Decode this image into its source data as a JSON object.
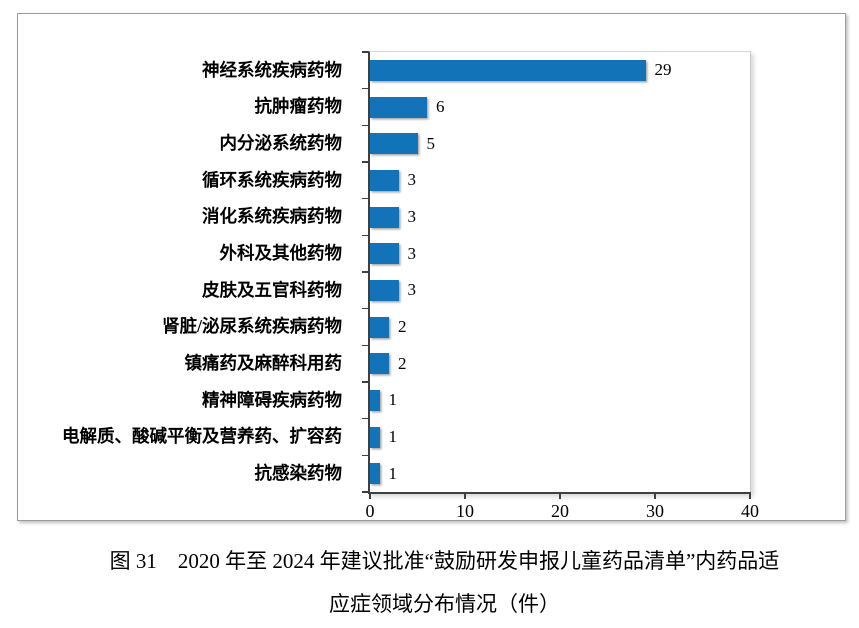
{
  "chart_data": {
    "type": "bar",
    "orientation": "horizontal",
    "title": "",
    "xlabel": "",
    "ylabel": "",
    "categories": [
      "神经系统疾病药物",
      "抗肿瘤药物",
      "内分泌系统药物",
      "循环系统疾病药物",
      "消化系统疾病药物",
      "外科及其他药物",
      "皮肤及五官科药物",
      "肾脏/泌尿系统疾病药物",
      "镇痛药及麻醉科用药",
      "精神障碍疾病药物",
      "电解质、酸碱平衡及营养药、扩容药",
      "抗感染药物"
    ],
    "values": [
      29,
      6,
      5,
      3,
      3,
      3,
      3,
      2,
      2,
      1,
      1,
      1
    ],
    "xlim": [
      0,
      40
    ],
    "x_ticks": [
      0,
      10,
      20,
      30,
      40
    ],
    "grid": false,
    "legend": "none",
    "value_labels_shown": true,
    "bar_color": "#1273B8",
    "axis_color": "#3f3f3f",
    "frame_color": "#9b9b9b"
  },
  "caption": {
    "line1": "图 31　2020 年至 2024 年建议批准“鼓励研发申报儿童药品清单”内药品适",
    "line2": "应症领域分布情况（件）"
  }
}
